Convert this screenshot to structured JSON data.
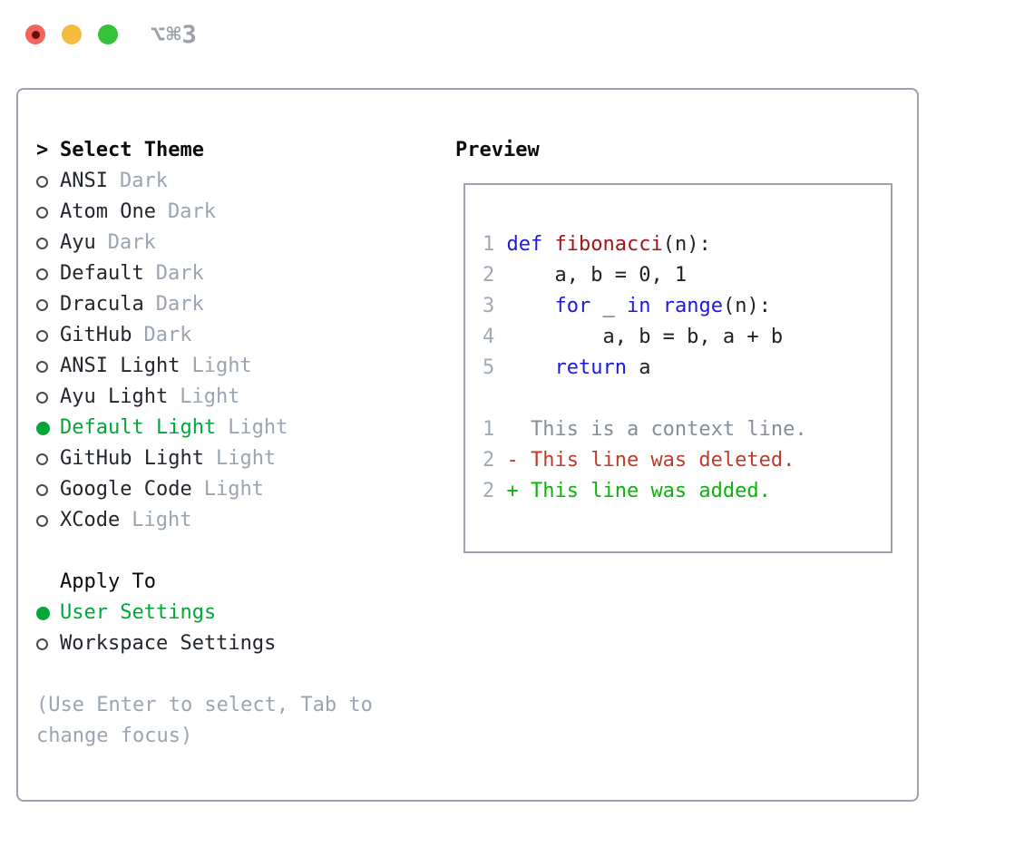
{
  "titlebar": {
    "shortcut": "⌥⌘3"
  },
  "theme_list": {
    "cursor": ">",
    "header_label": "Select Theme",
    "items": [
      {
        "name": "ANSI",
        "variant": "Dark",
        "selected": false
      },
      {
        "name": "Atom One",
        "variant": "Dark",
        "selected": false
      },
      {
        "name": "Ayu",
        "variant": "Dark",
        "selected": false
      },
      {
        "name": "Default",
        "variant": "Dark",
        "selected": false
      },
      {
        "name": "Dracula",
        "variant": "Dark",
        "selected": false
      },
      {
        "name": "GitHub",
        "variant": "Dark",
        "selected": false
      },
      {
        "name": "ANSI Light",
        "variant": "Light",
        "selected": false
      },
      {
        "name": "Ayu Light",
        "variant": "Light",
        "selected": false
      },
      {
        "name": "Default Light",
        "variant": "Light",
        "selected": true
      },
      {
        "name": "GitHub Light",
        "variant": "Light",
        "selected": false
      },
      {
        "name": "Google Code",
        "variant": "Light",
        "selected": false
      },
      {
        "name": "XCode",
        "variant": "Light",
        "selected": false
      }
    ]
  },
  "apply_to": {
    "header": "Apply To",
    "options": [
      {
        "label": "User Settings",
        "selected": true
      },
      {
        "label": "Workspace Settings",
        "selected": false
      }
    ]
  },
  "help_lines": [
    "(Use Enter to select, Tab to",
    "change focus)"
  ],
  "preview": {
    "title": "Preview",
    "code_lines": [
      {
        "num": "1",
        "tokens": [
          {
            "text": "def",
            "cls": "kw"
          },
          {
            "text": " ",
            "cls": "plain"
          },
          {
            "text": "fibonacci",
            "cls": "fn"
          },
          {
            "text": "(n):",
            "cls": "plain"
          }
        ]
      },
      {
        "num": "2",
        "tokens": [
          {
            "text": "    a, b = 0, 1",
            "cls": "plain"
          }
        ]
      },
      {
        "num": "3",
        "tokens": [
          {
            "text": "    ",
            "cls": "plain"
          },
          {
            "text": "for",
            "cls": "kw"
          },
          {
            "text": " _ ",
            "cls": "plain"
          },
          {
            "text": "in",
            "cls": "kw"
          },
          {
            "text": " ",
            "cls": "plain"
          },
          {
            "text": "range",
            "cls": "kw"
          },
          {
            "text": "(n):",
            "cls": "plain"
          }
        ]
      },
      {
        "num": "4",
        "tokens": [
          {
            "text": "        a, b = b, a + b",
            "cls": "plain"
          }
        ]
      },
      {
        "num": "5",
        "tokens": [
          {
            "text": "    ",
            "cls": "plain"
          },
          {
            "text": "return",
            "cls": "kw"
          },
          {
            "text": " a",
            "cls": "plain"
          }
        ]
      }
    ],
    "diff_lines": [
      {
        "num": "1",
        "tokens": [
          {
            "text": "  This is a context line.",
            "cls": "ctx"
          }
        ]
      },
      {
        "num": "2",
        "tokens": [
          {
            "text": "- This line was deleted.",
            "cls": "del"
          }
        ]
      },
      {
        "num": "2",
        "tokens": [
          {
            "text": "+ This line was added.",
            "cls": "add"
          }
        ]
      }
    ]
  },
  "colors": {
    "accent_green": "#00a838",
    "added_green": "#0ab50a",
    "deleted_red": "#c13a27",
    "keyword_blue": "#1a1ae6",
    "function_red": "#a31515",
    "muted_gray": "#9aa5b1",
    "context_gray": "#848e97",
    "line_number_gray": "#a0aab4",
    "border_gray": "#9aa3ae",
    "traffic_red": "#f2655c",
    "traffic_yellow": "#f5bb40",
    "traffic_green": "#33c23a",
    "shortcut_gray": "#9aa0a6"
  }
}
